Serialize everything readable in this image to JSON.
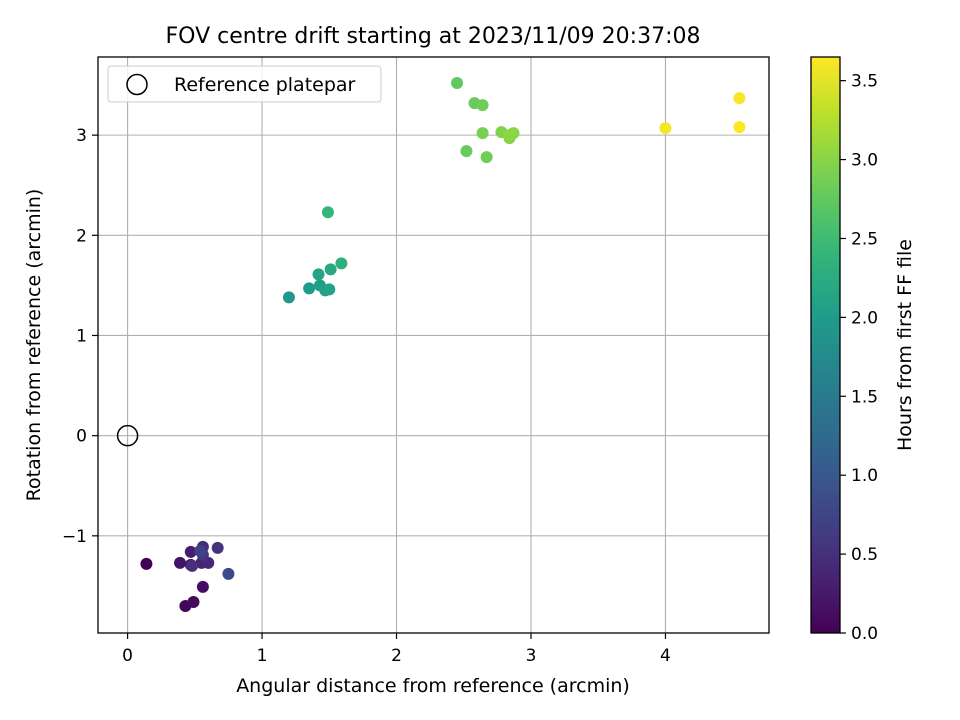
{
  "chart_data": {
    "type": "scatter",
    "title": "FOV centre drift starting at 2023/11/09 20:37:08",
    "xlabel": "Angular distance from reference (arcmin)",
    "ylabel": "Rotation from reference (arcmin)",
    "xlim": [
      -0.22,
      4.77
    ],
    "ylim": [
      -1.97,
      3.78
    ],
    "x_ticks": [
      0,
      1,
      2,
      3,
      4
    ],
    "y_ticks": [
      -1,
      0,
      1,
      2,
      3
    ],
    "grid": true,
    "legend": {
      "placement": "top-left",
      "entries": [
        "Reference platepar"
      ]
    },
    "reference_point": {
      "name": "Reference platepar",
      "x": 0,
      "y": 0,
      "marker": "open-circle"
    },
    "colorbar": {
      "label": "Hours from first FF file",
      "colormap": "viridis",
      "range": [
        0.0,
        3.65
      ],
      "ticks": [
        0.0,
        0.5,
        1.0,
        1.5,
        2.0,
        2.5,
        3.0,
        3.5
      ]
    },
    "series": [
      {
        "x": [
          0.14,
          0.43,
          0.49,
          0.56,
          0.39,
          0.47,
          0.47,
          0.55,
          0.6,
          0.56,
          0.48,
          0.67,
          0.56,
          0.54,
          0.75
        ],
        "y": [
          -1.28,
          -1.7,
          -1.66,
          -1.51,
          -1.27,
          -1.29,
          -1.16,
          -1.27,
          -1.27,
          -1.11,
          -1.3,
          -1.12,
          -1.19,
          -1.15,
          -1.38
        ],
        "hours": [
          0.0,
          0.05,
          0.1,
          0.15,
          0.2,
          0.25,
          0.3,
          0.35,
          0.4,
          0.45,
          0.5,
          0.55,
          0.6,
          0.7,
          0.8
        ]
      },
      {
        "x": [
          1.2,
          1.35,
          1.43,
          1.47,
          1.5,
          1.42,
          1.51,
          1.59,
          1.49
        ],
        "y": [
          1.38,
          1.47,
          1.5,
          1.45,
          1.46,
          1.61,
          1.66,
          1.72,
          2.23
        ],
        "hours": [
          1.95,
          2.0,
          2.05,
          2.08,
          2.1,
          2.12,
          2.2,
          2.3,
          2.42
        ]
      },
      {
        "x": [
          2.45,
          2.58,
          2.64,
          2.52,
          2.67,
          2.64,
          2.78,
          2.84,
          2.87,
          2.84
        ],
        "y": [
          3.52,
          3.32,
          3.3,
          2.84,
          2.78,
          3.02,
          3.03,
          2.97,
          3.02,
          3.0
        ],
        "hours": [
          2.75,
          2.8,
          2.85,
          2.8,
          2.85,
          2.9,
          2.95,
          2.98,
          3.0,
          3.02
        ]
      },
      {
        "x": [
          4.0,
          4.55,
          4.55
        ],
        "y": [
          3.07,
          3.37,
          3.08
        ],
        "hours": [
          3.6,
          3.62,
          3.65
        ]
      }
    ]
  }
}
